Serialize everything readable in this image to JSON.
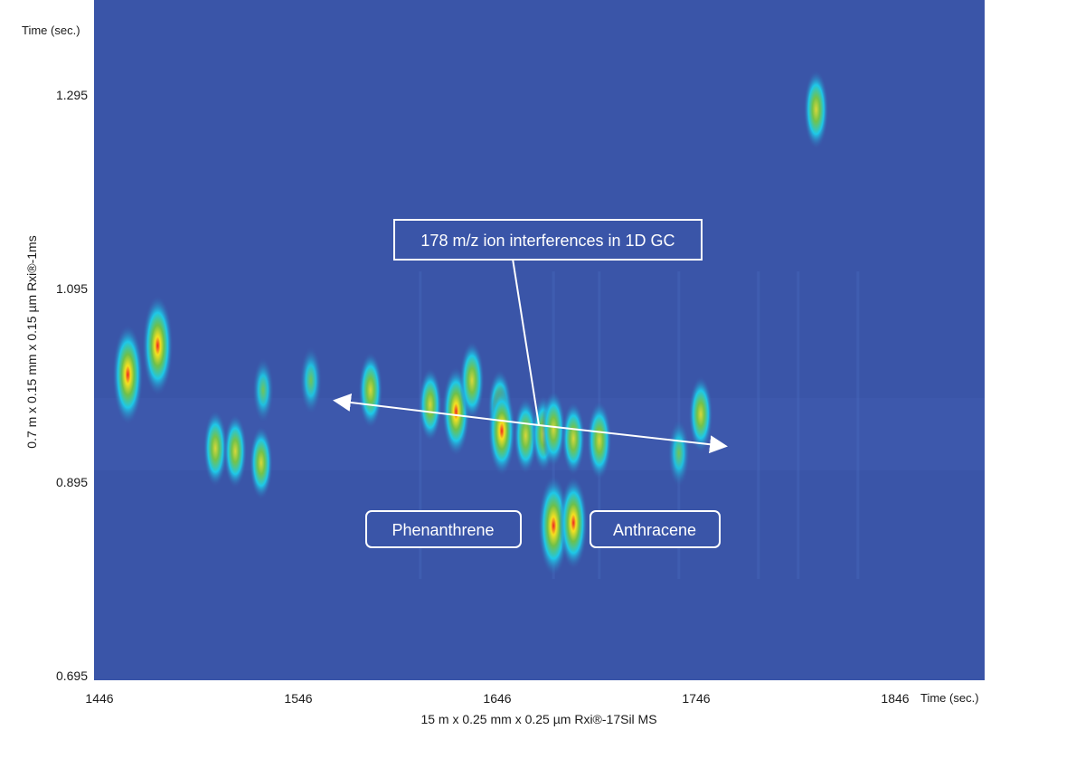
{
  "chart_data": {
    "type": "heatmap",
    "title": "",
    "xlabel": "15 m x 0.25 mm x 0.25 µm Rxi®-17Sil MS",
    "ylabel": "0.7 m x 0.15 mm x 0.15 µm Rxi®-1ms",
    "x_unit_label": "Time (sec.)",
    "y_unit_label": "Time (sec.)",
    "xlim": [
      1446,
      1880
    ],
    "ylim": [
      0.695,
      1.39
    ],
    "x_ticks": [
      1446,
      1546,
      1646,
      1746,
      1846
    ],
    "y_ticks": [
      0.695,
      0.895,
      1.095,
      1.295
    ],
    "x_tick_labels": [
      "1446",
      "1546",
      "1646",
      "1746",
      "1846"
    ],
    "y_tick_labels": [
      "0.695",
      "0.895",
      "1.095",
      "1.295"
    ],
    "background_color": "#3a55a8",
    "peaks": [
      {
        "x": 1463,
        "y": 1.006,
        "intensity": 1.0
      },
      {
        "x": 1478,
        "y": 1.036,
        "intensity": 1.0
      },
      {
        "x": 1507,
        "y": 0.93,
        "intensity": 0.55
      },
      {
        "x": 1517,
        "y": 0.927,
        "intensity": 0.5
      },
      {
        "x": 1530,
        "y": 0.915,
        "intensity": 0.5
      },
      {
        "x": 1531,
        "y": 0.99,
        "intensity": 0.35
      },
      {
        "x": 1555,
        "y": 1.0,
        "intensity": 0.4
      },
      {
        "x": 1585,
        "y": 0.99,
        "intensity": 0.55
      },
      {
        "x": 1615,
        "y": 0.975,
        "intensity": 0.5
      },
      {
        "x": 1628,
        "y": 0.968,
        "intensity": 0.8
      },
      {
        "x": 1636,
        "y": 1.0,
        "intensity": 0.6
      },
      {
        "x": 1650,
        "y": 0.972,
        "intensity": 0.55
      },
      {
        "x": 1651,
        "y": 0.948,
        "intensity": 0.8
      },
      {
        "x": 1663,
        "y": 0.943,
        "intensity": 0.55
      },
      {
        "x": 1672,
        "y": 0.945,
        "intensity": 0.55
      },
      {
        "x": 1677,
        "y": 0.85,
        "intensity": 1.0
      },
      {
        "x": 1677,
        "y": 0.95,
        "intensity": 0.55
      },
      {
        "x": 1687,
        "y": 0.853,
        "intensity": 0.85
      },
      {
        "x": 1687,
        "y": 0.94,
        "intensity": 0.5
      },
      {
        "x": 1700,
        "y": 0.938,
        "intensity": 0.6
      },
      {
        "x": 1740,
        "y": 0.925,
        "intensity": 0.4
      },
      {
        "x": 1751,
        "y": 0.965,
        "intensity": 0.55
      },
      {
        "x": 1809,
        "y": 1.28,
        "intensity": 0.6
      }
    ],
    "annotations": [
      {
        "text": "178 m/z ion interferences in 1D GC",
        "type": "box-with-arrows"
      },
      {
        "text": "Phenanthrene",
        "type": "box"
      },
      {
        "text": "Anthracene",
        "type": "box"
      }
    ]
  }
}
